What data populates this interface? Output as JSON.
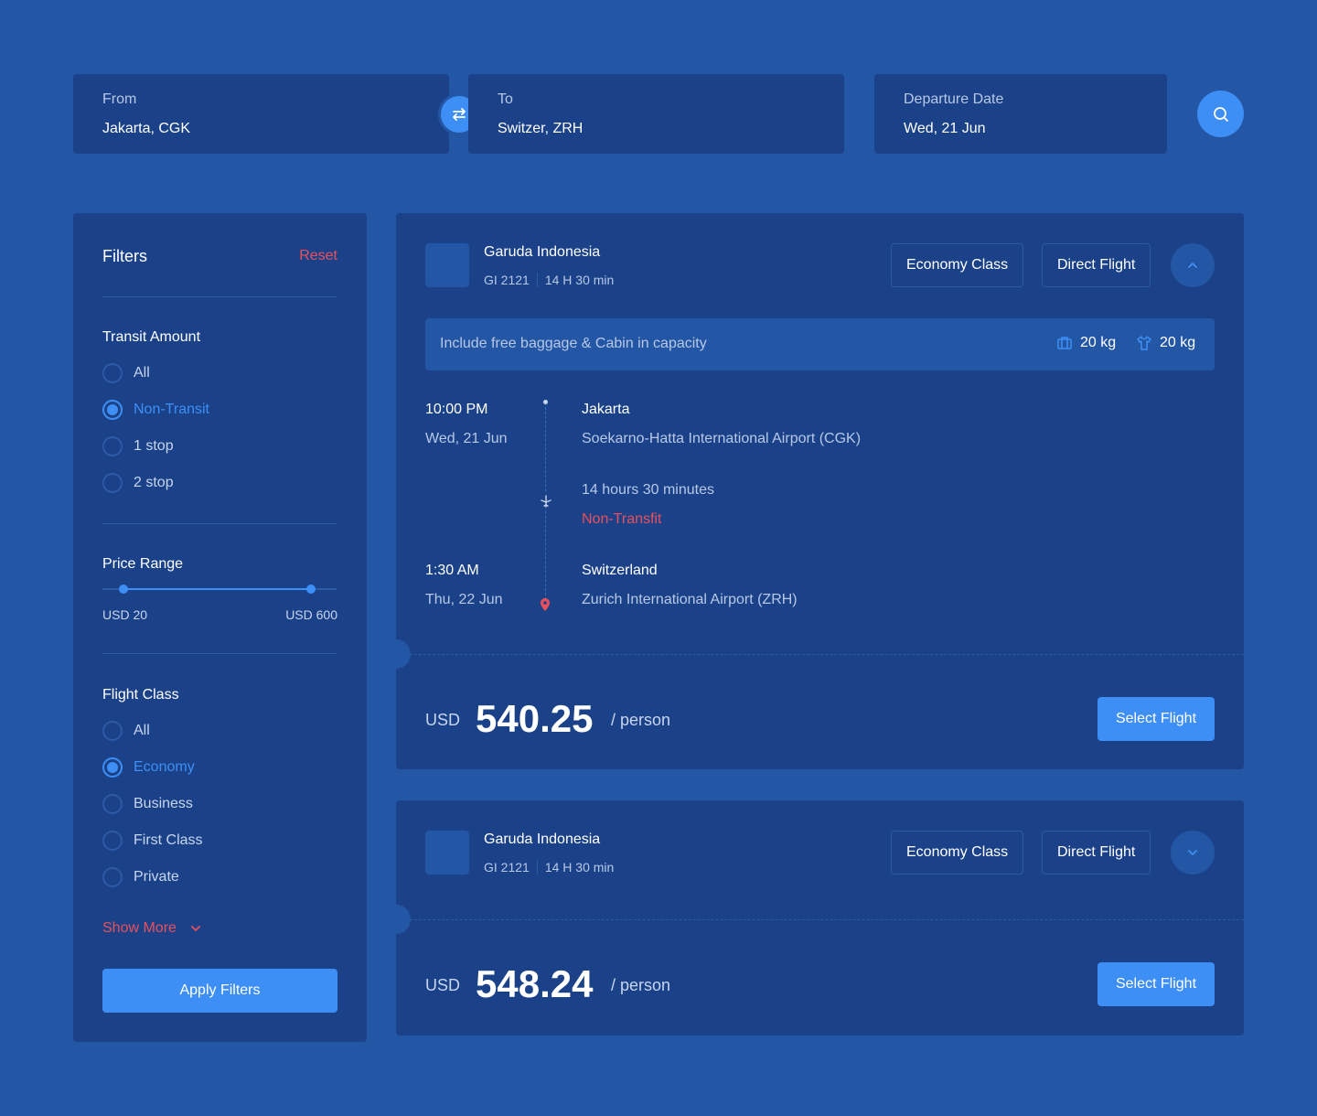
{
  "search": {
    "from": {
      "label": "From",
      "value": "Jakarta, CGK"
    },
    "to": {
      "label": "To",
      "value": "Switzer, ZRH"
    },
    "date": {
      "label": "Departure Date",
      "value": "Wed, 21 Jun"
    },
    "swap_icon": "swap-arrows-icon",
    "search_icon": "search-icon"
  },
  "filters": {
    "title": "Filters",
    "reset": "Reset",
    "transit": {
      "title": "Transit Amount",
      "options": [
        {
          "label": "All",
          "selected": false
        },
        {
          "label": "Non-Transit",
          "selected": true
        },
        {
          "label": "1 stop",
          "selected": false
        },
        {
          "label": "2 stop",
          "selected": false
        }
      ]
    },
    "price": {
      "title": "Price Range",
      "min_label": "USD 20",
      "max_label": "USD 600",
      "low_fraction": 0.09,
      "high_fraction": 0.89
    },
    "flight_class": {
      "title": "Flight Class",
      "options": [
        {
          "label": "All",
          "selected": false
        },
        {
          "label": "Economy",
          "selected": true
        },
        {
          "label": "Business",
          "selected": false
        },
        {
          "label": "First Class",
          "selected": false
        },
        {
          "label": "Private",
          "selected": false
        }
      ]
    },
    "show_more": "Show More",
    "apply": "Apply Filters"
  },
  "flights": [
    {
      "airline": "Garuda Indonesia",
      "code": "GI 2121",
      "duration_short": "14 H 30 min",
      "class_tag": "Economy Class",
      "type_tag": "Direct Flight",
      "expanded": true,
      "baggage_text": "Include free baggage & Cabin in capacity",
      "baggage_weight": "20 kg",
      "cabin_weight": "20 kg",
      "depart": {
        "time": "10:00 PM",
        "date": "Wed, 21 Jun",
        "city": "Jakarta",
        "airport": "Soekarno-Hatta International Airport (CGK)"
      },
      "duration_long": "14 hours 30 minutes",
      "transit": "Non-Transfit",
      "arrive": {
        "time": "1:30 AM",
        "date": "Thu, 22 Jun",
        "city": "Switzerland",
        "airport": "Zurich International Airport (ZRH)"
      },
      "currency": "USD",
      "price": "540.25",
      "per": "/ person",
      "select": "Select Flight"
    },
    {
      "airline": "Garuda Indonesia",
      "code": "GI 2121",
      "duration_short": "14 H 30 min",
      "class_tag": "Economy Class",
      "type_tag": "Direct Flight",
      "expanded": false,
      "currency": "USD",
      "price": "548.24",
      "per": "/ person",
      "select": "Select Flight"
    }
  ],
  "colors": {
    "background": "#2356a4",
    "panel": "#1b4289",
    "accent": "#3d8ff5",
    "danger": "#e8505b"
  }
}
